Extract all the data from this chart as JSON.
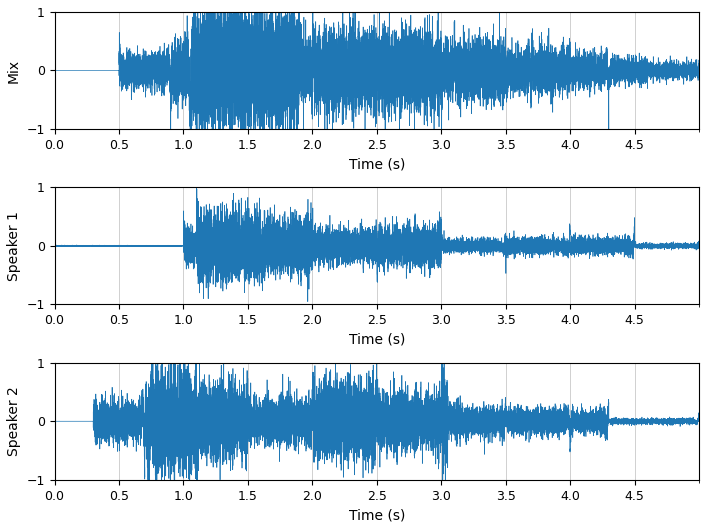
{
  "title": "",
  "xlim": [
    0,
    5.0
  ],
  "ylim": [
    -1,
    1
  ],
  "xticks": [
    0,
    0.5,
    1.0,
    1.5,
    2.0,
    2.5,
    3.0,
    3.5,
    4.0,
    4.5
  ],
  "yticks": [
    -1,
    0,
    1
  ],
  "xlabel": "Time (s)",
  "ylabels": [
    "Mix",
    "Speaker 1",
    "Speaker 2"
  ],
  "line_color": "#1f77b4",
  "line_width": 0.5,
  "sample_rate": 8000,
  "duration": 5.0,
  "background_color": "#ffffff",
  "grid_color": "#d0d0d0"
}
